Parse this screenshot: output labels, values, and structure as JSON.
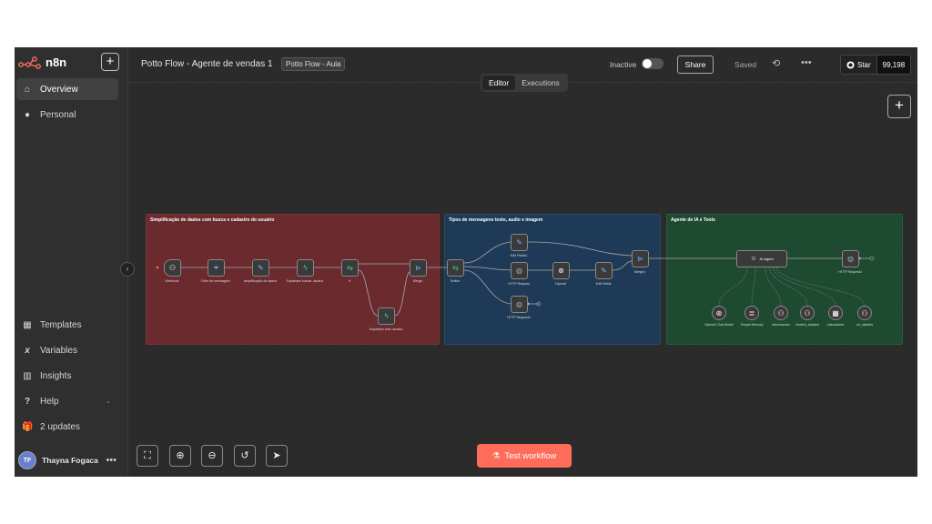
{
  "sidebar": {
    "brand": "n8n",
    "items": [
      {
        "label": "Overview",
        "icon": "home-icon"
      },
      {
        "label": "Personal",
        "icon": "user-icon"
      }
    ],
    "bottom_items": [
      {
        "label": "Templates",
        "icon": "templates-icon"
      },
      {
        "label": "Variables",
        "icon": "variables-icon"
      },
      {
        "label": "Insights",
        "icon": "insights-icon"
      },
      {
        "label": "Help",
        "icon": "help-icon"
      },
      {
        "label": "2 updates",
        "icon": "gift-icon"
      }
    ],
    "user": {
      "initials": "TF",
      "name": "Thayna Fogaca"
    }
  },
  "header": {
    "title": "Potto Flow - Agente de vendas 1",
    "tag": "Potto Flow - Aula",
    "inactive_label": "Inactive",
    "share_label": "Share",
    "saved_label": "Saved",
    "github_star": "Star",
    "github_count": "99,198"
  },
  "tabs": [
    {
      "label": "Editor",
      "active": true
    },
    {
      "label": "Executions",
      "active": false
    }
  ],
  "canvas": {
    "test_workflow_label": "Test workflow",
    "stickies": [
      {
        "title": "Simplificação de dados com busca e cadastro do usuário",
        "color": "#6a2a2e"
      },
      {
        "title": "Tipos de mensagens texto, audio e imagem",
        "color": "#1f3a56"
      },
      {
        "title": "Agente de IA e Tools",
        "color": "#1f4a32"
      }
    ],
    "nodes": {
      "webhook": "Webhook",
      "filtro": "Filtro de mensagem",
      "simplificacao": "simplificação de dados",
      "supabase_buscar": "Supabase buscar usuário",
      "if": "If",
      "supabase_criar": "Supabase criar usuário",
      "merge": "Merge",
      "switch": "Switch",
      "edit_fields1": "Edit Fields1",
      "http_request": "HTTP Request",
      "http_request1": "HTTP Request1",
      "openai": "OpenAI",
      "edit_fields": "Edit Fields",
      "merge1": "Merge1",
      "ai_agent": "AI Agent",
      "http_request2": "HTTP Request2",
      "openai_chat": "OpenAI Chat Model",
      "simple_memory": "Simple Memory",
      "informacoes": "informacoes",
      "modelo_cidades": "modelo_cidades",
      "calculadora": "calculadora",
      "url_cidades": "url_cidades"
    }
  }
}
